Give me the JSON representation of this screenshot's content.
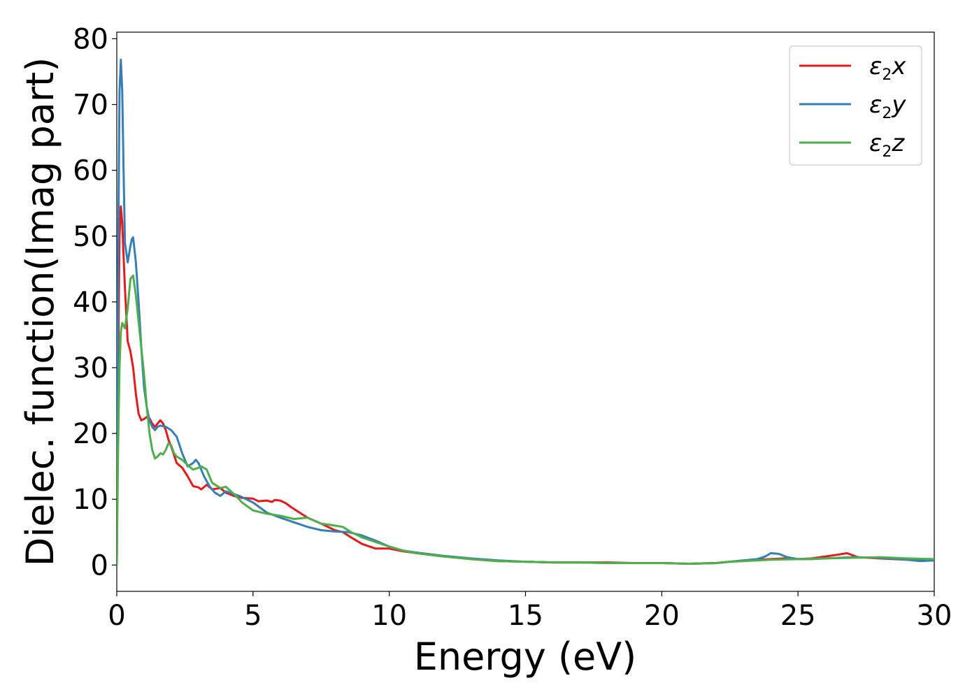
{
  "chart_data": {
    "type": "line",
    "xlabel": "Energy (eV)",
    "ylabel": "Dielec. function(Imag part)",
    "xlim": [
      0,
      30
    ],
    "ylim": [
      -4,
      81
    ],
    "xticks": [
      0,
      5,
      10,
      15,
      20,
      25,
      30
    ],
    "yticks": [
      0,
      10,
      20,
      30,
      40,
      50,
      60,
      70,
      80
    ],
    "grid": false,
    "legend_position": "top-right",
    "series": [
      {
        "name": "ε2x",
        "legend": {
          "base": "ε",
          "sub": "2",
          "axis": "x"
        },
        "color": "#e41a1c",
        "x": [
          0,
          0.05,
          0.1,
          0.15,
          0.2,
          0.25,
          0.3,
          0.4,
          0.5,
          0.6,
          0.7,
          0.8,
          0.9,
          1.0,
          1.1,
          1.2,
          1.3,
          1.4,
          1.5,
          1.6,
          1.7,
          1.8,
          1.9,
          2.0,
          2.2,
          2.4,
          2.6,
          2.8,
          3.0,
          3.1,
          3.3,
          3.5,
          3.8,
          4.0,
          4.3,
          4.6,
          5.0,
          5.2,
          5.5,
          5.7,
          5.8,
          6.0,
          6.2,
          6.4,
          6.7,
          7.0,
          7.5,
          8.0,
          8.3,
          8.6,
          9.0,
          9.5,
          10.0,
          10.5,
          11.0,
          12.0,
          13.0,
          14.0,
          15.0,
          16.0,
          17.0,
          18.0,
          19.0,
          20.0,
          21.0,
          22.0,
          22.5,
          23.0,
          23.5,
          24.0,
          24.5,
          25.0,
          25.5,
          26.0,
          26.5,
          26.8,
          27.2,
          28.0,
          29.0,
          30.0
        ],
        "y": [
          0,
          30,
          50,
          54.5,
          52,
          47,
          42,
          34,
          32.5,
          30,
          26,
          23,
          22,
          22.2,
          22.5,
          22.3,
          21.5,
          21,
          21.5,
          22,
          21.5,
          20.5,
          19,
          18,
          15.5,
          14.8,
          13.5,
          12,
          11.8,
          11.5,
          12.2,
          11.5,
          11.7,
          11,
          10.5,
          10.2,
          10.1,
          9.7,
          9.8,
          9.6,
          9.9,
          9.8,
          9.4,
          8.8,
          8,
          7.2,
          6.3,
          5.3,
          5,
          4.2,
          3.2,
          2.5,
          2.5,
          2.1,
          1.8,
          1.3,
          0.9,
          0.6,
          0.5,
          0.4,
          0.4,
          0.4,
          0.3,
          0.3,
          0.2,
          0.3,
          0.5,
          0.7,
          0.8,
          0.9,
          1.0,
          0.9,
          1.0,
          1.3,
          1.6,
          1.8,
          1.2,
          1.0,
          0.8,
          0.7
        ]
      },
      {
        "name": "ε2y",
        "legend": {
          "base": "ε",
          "sub": "2",
          "axis": "y"
        },
        "color": "#377eb8",
        "x": [
          0,
          0.05,
          0.1,
          0.15,
          0.2,
          0.25,
          0.3,
          0.4,
          0.5,
          0.55,
          0.6,
          0.7,
          0.8,
          0.9,
          1.0,
          1.1,
          1.2,
          1.3,
          1.4,
          1.5,
          1.6,
          1.8,
          2.0,
          2.2,
          2.4,
          2.6,
          2.8,
          2.9,
          3.0,
          3.2,
          3.4,
          3.6,
          3.8,
          4.0,
          4.5,
          5.0,
          5.5,
          6.0,
          6.5,
          7.0,
          7.5,
          8.0,
          8.5,
          9.0,
          9.5,
          10.0,
          10.5,
          11.0,
          12.0,
          13.0,
          14.0,
          15.0,
          16.0,
          17.0,
          18.0,
          19.0,
          20.0,
          21.0,
          22.0,
          22.5,
          23.0,
          23.5,
          23.8,
          24.0,
          24.3,
          24.6,
          25.0,
          25.5,
          26.0,
          27.0,
          28.0,
          29.0,
          29.5,
          30.0
        ],
        "y": [
          0,
          45,
          72,
          76.8,
          72,
          60,
          49,
          46,
          48.5,
          49.5,
          49.8,
          46,
          40,
          33,
          27,
          24,
          22,
          21,
          20.5,
          21,
          21.2,
          21,
          20.5,
          19.5,
          17,
          15,
          15.5,
          16,
          15.5,
          13.5,
          12,
          11,
          10.5,
          11.2,
          10.5,
          9.5,
          8,
          7.2,
          6.5,
          5.8,
          5.3,
          5.1,
          5.0,
          4.5,
          3.7,
          2.8,
          2.2,
          1.9,
          1.4,
          1.0,
          0.7,
          0.5,
          0.4,
          0.4,
          0.3,
          0.3,
          0.3,
          0.2,
          0.3,
          0.5,
          0.7,
          0.9,
          1.3,
          1.8,
          1.7,
          1.2,
          0.9,
          0.9,
          1.0,
          1.2,
          1.1,
          0.8,
          0.6,
          0.7
        ]
      },
      {
        "name": "ε2z",
        "legend": {
          "base": "ε",
          "sub": "2",
          "axis": "z"
        },
        "color": "#4daf4a",
        "x": [
          0,
          0.05,
          0.1,
          0.15,
          0.2,
          0.3,
          0.4,
          0.5,
          0.6,
          0.7,
          0.8,
          0.9,
          1.0,
          1.1,
          1.2,
          1.3,
          1.4,
          1.5,
          1.6,
          1.7,
          1.8,
          1.9,
          2.0,
          2.1,
          2.2,
          2.4,
          2.6,
          2.8,
          3.0,
          3.1,
          3.3,
          3.5,
          3.8,
          4.0,
          4.3,
          4.6,
          5.0,
          5.5,
          6.0,
          6.5,
          7.0,
          7.5,
          8.0,
          8.3,
          8.6,
          9.0,
          9.5,
          10.0,
          10.5,
          11.0,
          12.0,
          13.0,
          14.0,
          15.0,
          16.0,
          17.0,
          18.0,
          19.0,
          20.0,
          21.0,
          22.0,
          22.5,
          23.0,
          24.0,
          25.0,
          26.0,
          27.0,
          28.0,
          29.0,
          30.0
        ],
        "y": [
          0,
          18,
          30,
          35.5,
          36.8,
          36,
          39,
          43.5,
          44,
          41,
          37,
          33,
          29,
          24,
          20,
          17.5,
          16.2,
          16.5,
          17,
          16.8,
          17.5,
          18.5,
          18.2,
          17,
          16.5,
          16,
          15.2,
          14.5,
          14.8,
          15,
          14.5,
          12.5,
          11.7,
          11.9,
          10.8,
          9.5,
          8.3,
          7.8,
          7.5,
          7.0,
          7.2,
          6.3,
          6.0,
          5.8,
          5.0,
          4.2,
          3.5,
          2.8,
          2.2,
          1.8,
          1.3,
          0.9,
          0.6,
          0.5,
          0.4,
          0.4,
          0.3,
          0.3,
          0.3,
          0.2,
          0.3,
          0.5,
          0.6,
          0.8,
          0.9,
          1.0,
          1.1,
          1.2,
          1.0,
          0.9
        ]
      }
    ]
  }
}
